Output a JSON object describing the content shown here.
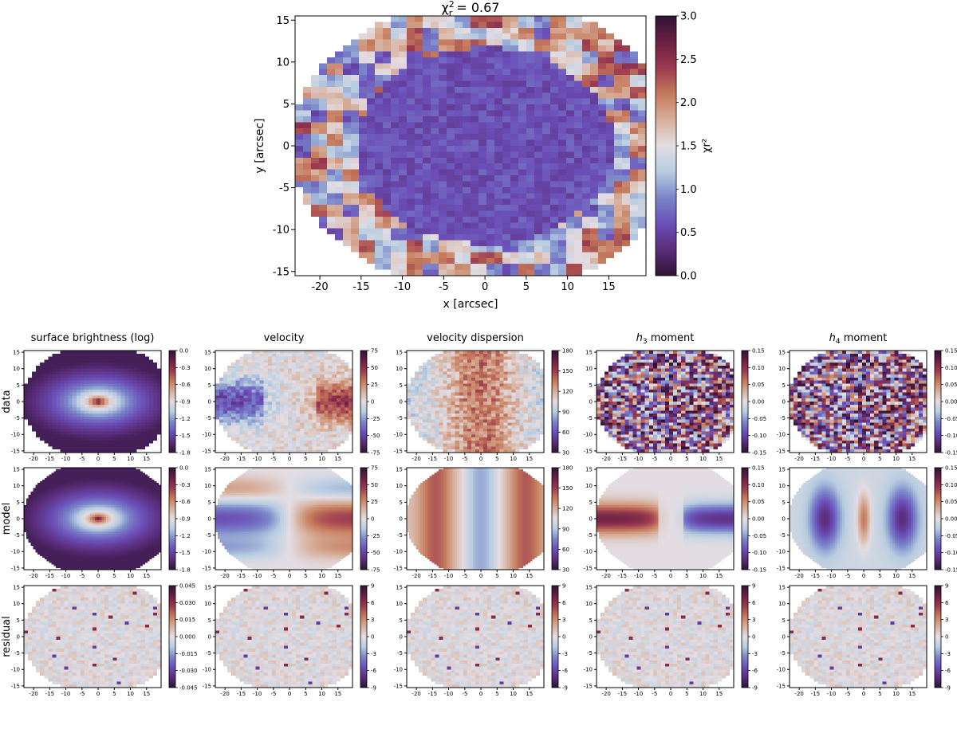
{
  "colors": {
    "twilight_shifted": [
      "#2f1436",
      "#5a2c7a",
      "#6b4fb8",
      "#7a86c9",
      "#b7cde0",
      "#e3dde3",
      "#d7b09c",
      "#c57a5c",
      "#9b3a4f",
      "#6b1f43",
      "#2f1436"
    ]
  },
  "chart_data": [
    {
      "type": "heatmap",
      "id": "chi2-main",
      "title_prefix": "χ",
      "title_sub": "r",
      "title_sup": "2",
      "title_value": " = 0.67",
      "xlabel": "x [arcsec]",
      "ylabel": "y [arcsec]",
      "xlim": [
        -23,
        19.5
      ],
      "ylim": [
        -15.5,
        15.5
      ],
      "xticks": [
        -20,
        -15,
        -10,
        -5,
        0,
        5,
        10,
        15
      ],
      "yticks": [
        -15,
        -10,
        -5,
        0,
        5,
        10,
        15
      ],
      "colorbar": {
        "label": "χr²",
        "range": [
          0.0,
          3.0
        ],
        "ticks": [
          "0.0",
          "0.5",
          "1.0",
          "1.5",
          "2.0",
          "2.5",
          "3.0"
        ]
      }
    },
    {
      "type": "heatmap_grid",
      "id": "kinematic-maps",
      "columns": [
        "surface brightness (log)",
        "velocity",
        "velocity dispersion",
        "h3 moment",
        "h4 moment"
      ],
      "column_titles": [
        {
          "pre": "surface brightness (log)",
          "sym": "",
          "sub": "",
          "post": ""
        },
        {
          "pre": "velocity",
          "sym": "",
          "sub": "",
          "post": ""
        },
        {
          "pre": "velocity dispersion",
          "sym": "",
          "sub": "",
          "post": ""
        },
        {
          "pre": "",
          "sym": "h",
          "sub": "3",
          "post": " moment"
        },
        {
          "pre": "",
          "sym": "h",
          "sub": "4",
          "post": " moment"
        }
      ],
      "rows": [
        "data",
        "model",
        "residual"
      ],
      "xticks": [
        -20,
        -15,
        -10,
        -5,
        0,
        5,
        10,
        15
      ],
      "yticks": [
        -15,
        -10,
        -5,
        0,
        5,
        10,
        15
      ],
      "colorbar_ticks": [
        [
          [
            "0.0",
            "-0.3",
            "-0.6",
            "-0.9",
            "-1.2",
            "-1.5",
            "-1.8"
          ],
          [
            "75",
            "50",
            "25",
            "0",
            "-25",
            "-50",
            "-75"
          ],
          [
            "180",
            "150",
            "120",
            "90",
            "60",
            "30"
          ],
          [
            "0.15",
            "0.10",
            "0.05",
            "0.00",
            "-0.05",
            "-0.10",
            "-0.15"
          ],
          [
            "0.15",
            "0.10",
            "0.05",
            "0.00",
            "-0.05",
            "-0.10",
            "-0.15"
          ]
        ],
        [
          [
            "0.0",
            "-0.3",
            "-0.6",
            "-0.9",
            "-1.2",
            "-1.5",
            "-1.8"
          ],
          [
            "75",
            "50",
            "25",
            "0",
            "-25",
            "-50",
            "-75"
          ],
          [
            "180",
            "150",
            "120",
            "90",
            "60",
            "30"
          ],
          [
            "0.15",
            "0.10",
            "0.05",
            "0.00",
            "-0.05",
            "-0.10",
            "-0.15"
          ],
          [
            "0.15",
            "0.10",
            "0.05",
            "0.00",
            "-0.05",
            "-0.10",
            "-0.15"
          ]
        ],
        [
          [
            "0.045",
            "0.030",
            "0.015",
            "0.000",
            "-0.015",
            "-0.030",
            "-0.045"
          ],
          [
            "9",
            "6",
            "3",
            "0",
            "-3",
            "-6",
            "-9"
          ],
          [
            "9",
            "6",
            "3",
            "0",
            "-3",
            "-6",
            "-9"
          ],
          [
            "9",
            "6",
            "3",
            "0",
            "-3",
            "-6",
            "-9"
          ],
          [
            "9",
            "6",
            "3",
            "0",
            "-3",
            "-6",
            "-9"
          ]
        ]
      ]
    }
  ]
}
